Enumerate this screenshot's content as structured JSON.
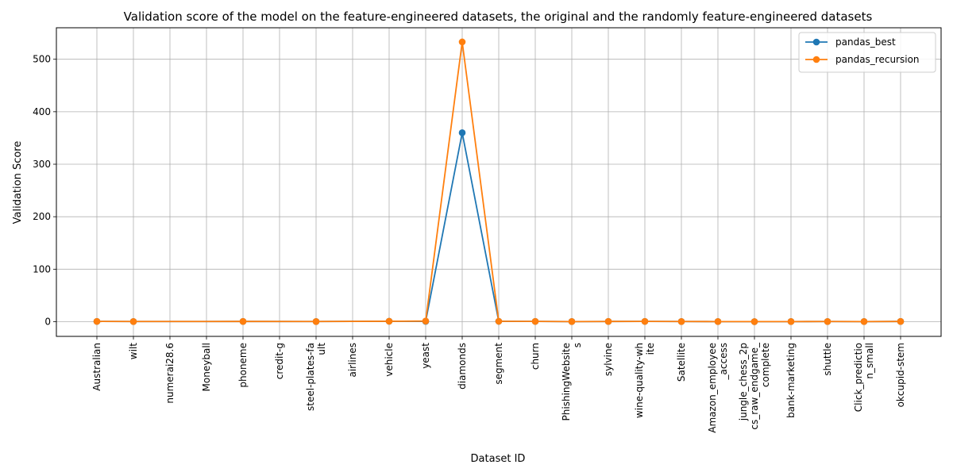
{
  "chart_data": {
    "type": "line",
    "title": "Validation score of the model on the feature-engineered datasets, the original and the randomly feature-engineered datasets",
    "xlabel": "Dataset ID",
    "ylabel": "Validation Score",
    "ylim": [
      -28,
      560
    ],
    "yticks": [
      0,
      100,
      200,
      300,
      400,
      500
    ],
    "grid": true,
    "legend_position": "top-right",
    "categories": [
      [
        "Australian"
      ],
      [
        "wilt"
      ],
      [
        "numerai28.6"
      ],
      [
        "Moneyball"
      ],
      [
        "phoneme"
      ],
      [
        "credit-g"
      ],
      [
        "steel-plates-fa",
        "ult"
      ],
      [
        "airlines"
      ],
      [
        "vehicle"
      ],
      [
        "yeast"
      ],
      [
        "diamonds"
      ],
      [
        "segment"
      ],
      [
        "churn"
      ],
      [
        "PhishingWebsite",
        "s"
      ],
      [
        "sylvine"
      ],
      [
        "wine-quality-wh",
        "ite"
      ],
      [
        "Satellite"
      ],
      [
        "Amazon_employee",
        "_access"
      ],
      [
        "jungle_chess_2p",
        "cs_raw_endgame_",
        "complete"
      ],
      [
        "bank-marketing"
      ],
      [
        "shuttle"
      ],
      [
        "Click_predictio",
        "n_small"
      ],
      [
        "okcupid-stem"
      ]
    ],
    "series": [
      {
        "name": "pandas_best",
        "color": "#1f77b4",
        "values": [
          0.5,
          0.3,
          null,
          null,
          0.4,
          null,
          0.3,
          null,
          0.8,
          0.6,
          360,
          0.7,
          0.5,
          0.2,
          0.4,
          0.5,
          0.3,
          0.2,
          0.1,
          0.2,
          0.3,
          0.2,
          0.4
        ]
      },
      {
        "name": "pandas_recursion",
        "color": "#ff7f0e",
        "values": [
          0.5,
          0.3,
          null,
          null,
          0.4,
          null,
          0.3,
          null,
          0.8,
          1.2,
          533,
          0.7,
          0.5,
          0.2,
          0.4,
          0.5,
          0.3,
          0.2,
          0.1,
          0.2,
          0.3,
          0.2,
          0.4
        ]
      }
    ]
  }
}
